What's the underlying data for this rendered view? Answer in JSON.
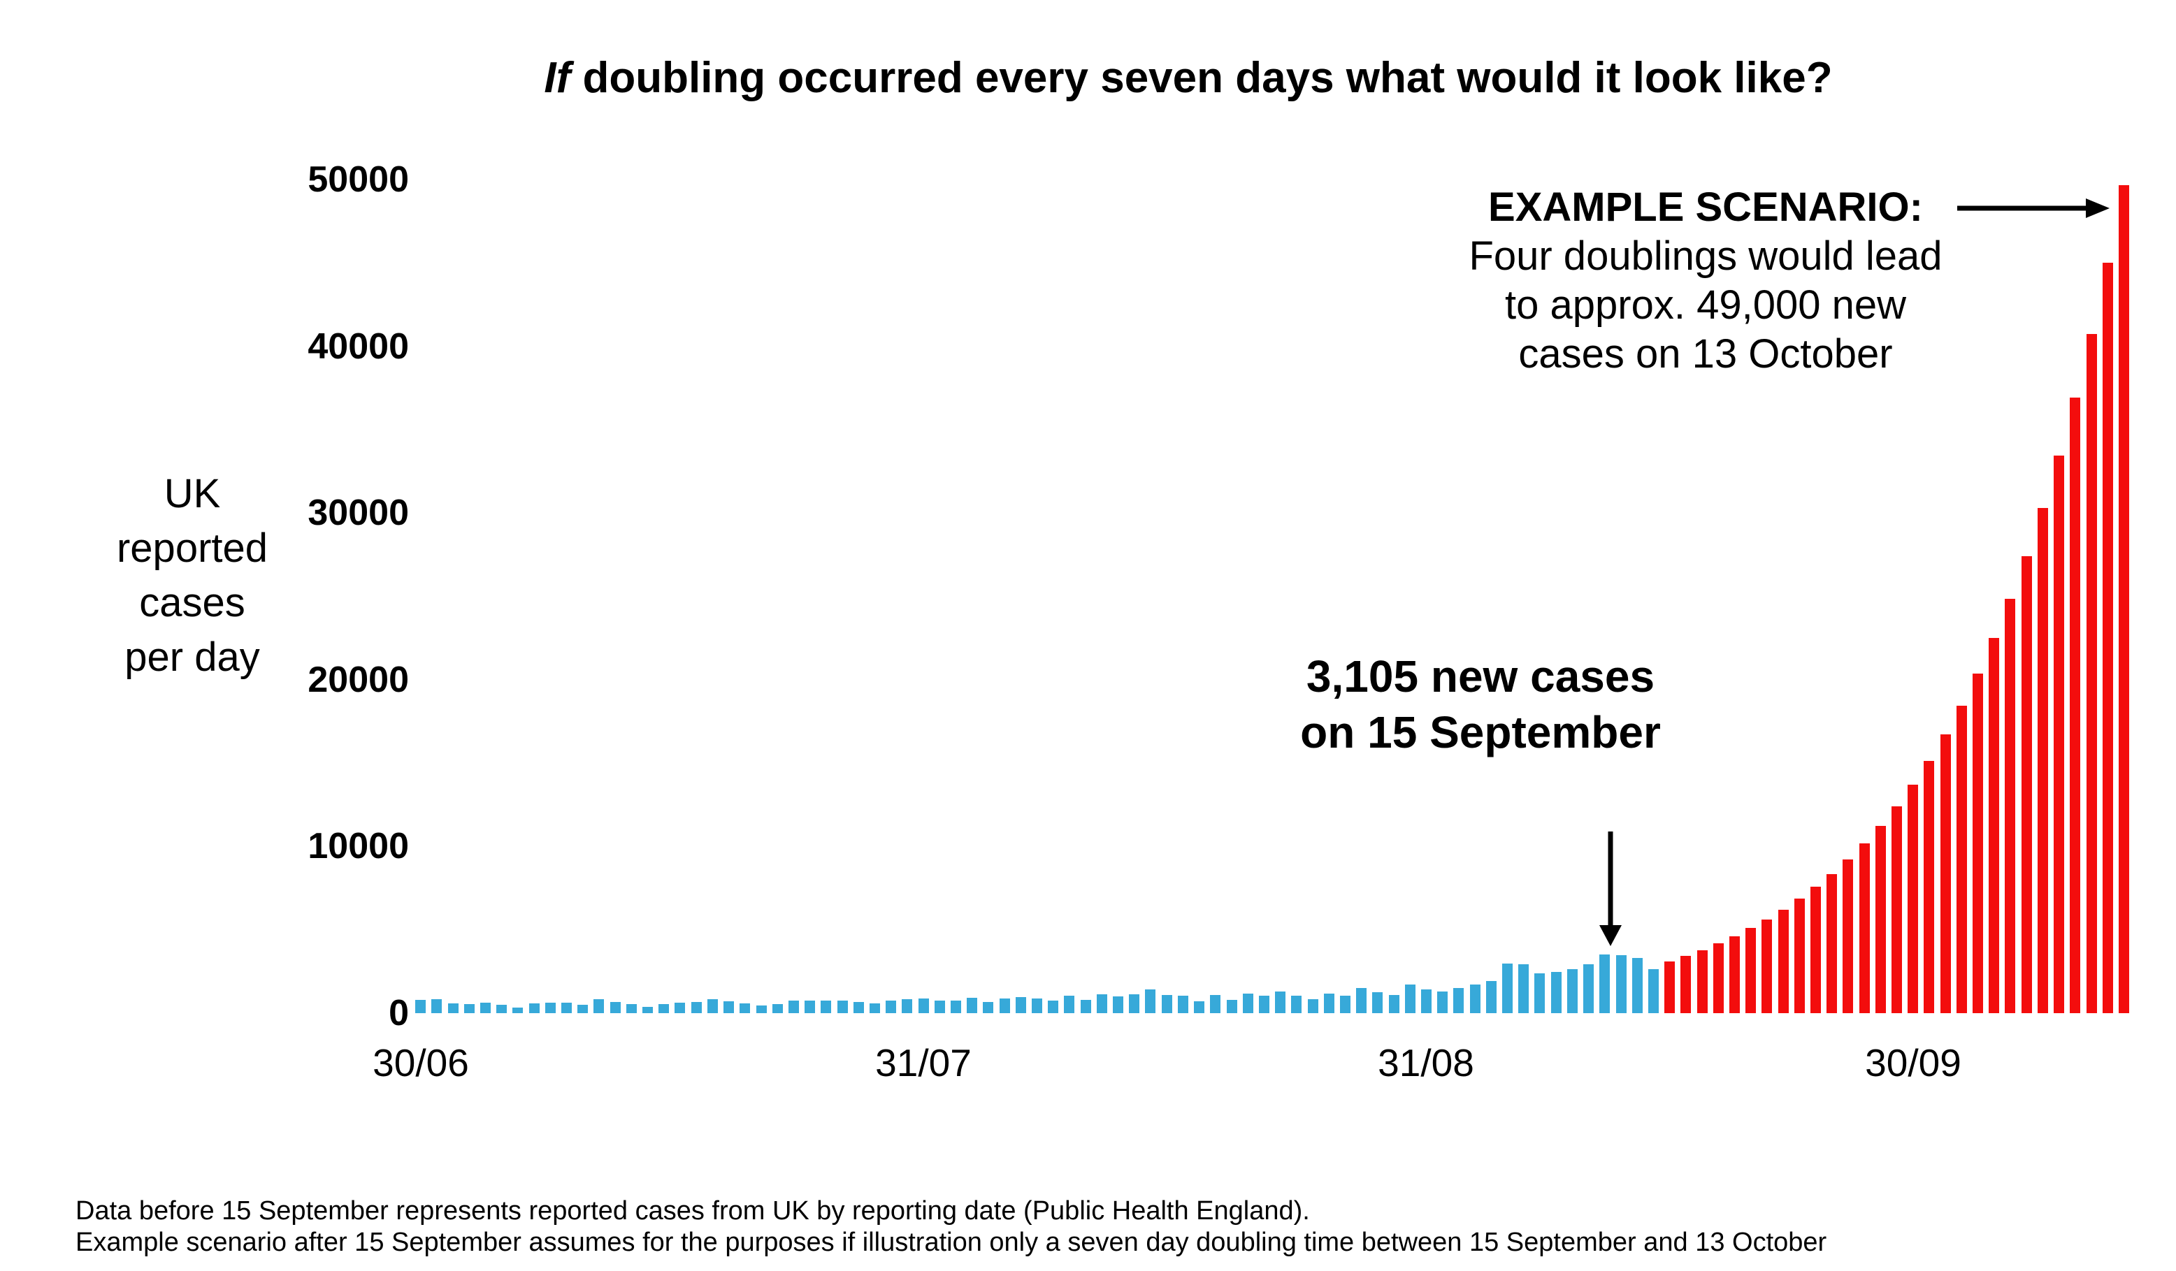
{
  "title": {
    "if_word": "If",
    "rest": " doubling occurred every seven days what would it look like?"
  },
  "y_axis": {
    "title_multiline": "UK\nreported\ncases\nper day",
    "tick_values": [
      0,
      10000,
      20000,
      30000,
      40000,
      50000
    ]
  },
  "x_axis": {
    "ticks": [
      {
        "label": "30/06",
        "day": 0
      },
      {
        "label": "31/07",
        "day": 31
      },
      {
        "label": "31/08",
        "day": 62
      },
      {
        "label": "30/09",
        "day": 92
      }
    ]
  },
  "annotations": {
    "cases_note": "3,105 new cases\non 15 September",
    "scenario_heading": "EXAMPLE SCENARIO:",
    "scenario_body": "Four doublings would lead\nto approx. 49,000 new\ncases on 13 October"
  },
  "footnotes": [
    "Data before 15 September represents reported cases from UK by reporting date (Public Health England).",
    "Example scenario after 15 September assumes for the purposes if illustration only a seven day doubling time between 15 September and 13 October"
  ],
  "colors": {
    "reported_blue": "#37a9d9",
    "scenario_red": "#f30d0d",
    "ink": "#000000"
  },
  "chart_data": {
    "type": "bar",
    "title": "If doubling occurred every seven days what would it look like?",
    "ylabel": "UK reported cases per day",
    "ylim": [
      0,
      50000
    ],
    "y_tick_values": [
      0,
      10000,
      20000,
      30000,
      40000,
      50000
    ],
    "x_tick_labels": [
      "30/06",
      "31/07",
      "31/08",
      "30/09"
    ],
    "x_tick_days": [
      0,
      31,
      62,
      92
    ],
    "grid": false,
    "legend": "none",
    "series": [
      {
        "name": "Reported cases by reporting date (Public Health England), 30 June - 14 September",
        "color": "#37a9d9",
        "values": [
          815,
          829,
          576,
          544,
          624,
          516,
          352,
          581,
          630,
          642,
          512,
          820,
          650,
          530,
          398,
          538,
          642,
          687,
          827,
          726,
          580,
          445,
          560,
          770,
          768,
          767,
          747,
          685,
          581,
          763,
          846,
          880,
          771,
          743,
          938,
          670,
          892,
          950,
          871,
          758,
          1062,
          816,
          1148,
          1009,
          1129,
          1441,
          1077,
          1040,
          713,
          1089,
          812,
          1182,
          1033,
          1288,
          1041,
          853,
          1184,
          1048,
          1522,
          1276,
          1108,
          1715,
          1406,
          1295,
          1508,
          1735,
          1940,
          2988,
          2948,
          2395,
          2460,
          2659,
          2919,
          3539,
          3497,
          3330,
          2621
        ]
      },
      {
        "name": "Example scenario: seven day doubling time, 15 September - 13 October",
        "color": "#f30d0d",
        "values": [
          3105,
          3428,
          3785,
          4179,
          4614,
          5094,
          5624,
          6210,
          6857,
          7570,
          8358,
          9228,
          10189,
          11249,
          12420,
          13713,
          15141,
          16716,
          18456,
          20377,
          22498,
          24840,
          27427,
          30281,
          33433,
          36913,
          40755,
          44997,
          49680
        ]
      }
    ],
    "key_points": [
      {
        "label": "3,105 new cases on 15 September",
        "value": 3105
      },
      {
        "label": "approx. 49,000 new cases on 13 October",
        "value": 49680
      }
    ]
  }
}
